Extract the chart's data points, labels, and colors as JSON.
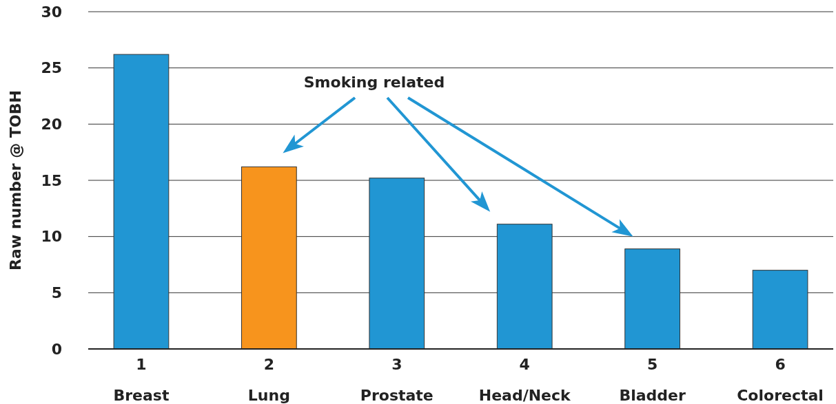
{
  "chart_data": {
    "type": "bar",
    "ylabel": "Raw number @ TOBH",
    "categories": [
      "1\nBreast",
      "2\nLung",
      "3\nProstate",
      "4\nHead/Neck",
      "5\nBladder",
      "6\nColorectal"
    ],
    "values": [
      26.2,
      16.2,
      15.2,
      11.1,
      8.9,
      7.0
    ],
    "colors": [
      "#2196d3",
      "#f7941d",
      "#2196d3",
      "#2196d3",
      "#2196d3",
      "#2196d3"
    ],
    "ylim": [
      0,
      30
    ],
    "yticks": [
      0,
      5,
      10,
      15,
      20,
      25,
      30
    ],
    "grid": "y",
    "annotations": [
      "Smoking related"
    ]
  }
}
